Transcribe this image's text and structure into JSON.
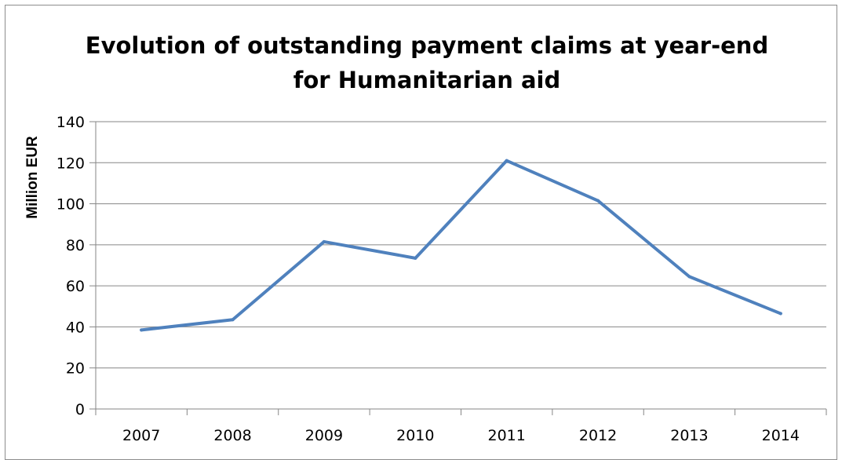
{
  "chart_data": {
    "type": "line",
    "title_line1": "Evolution of outstanding payment claims at year-end",
    "title_line2": "for Humanitarian aid",
    "xlabel": "",
    "ylabel": "Million EUR",
    "categories": [
      "2007",
      "2008",
      "2009",
      "2010",
      "2011",
      "2012",
      "2013",
      "2014"
    ],
    "series": [
      {
        "values": [
          38.5,
          43.5,
          81.5,
          73.5,
          121,
          101.5,
          64.5,
          46.5
        ],
        "color": "#4f81bd"
      }
    ],
    "ylim": [
      0,
      140
    ],
    "yticks": [
      "0",
      "20",
      "40",
      "60",
      "80",
      "100",
      "120",
      "140"
    ],
    "grid": true,
    "legend": "none"
  }
}
